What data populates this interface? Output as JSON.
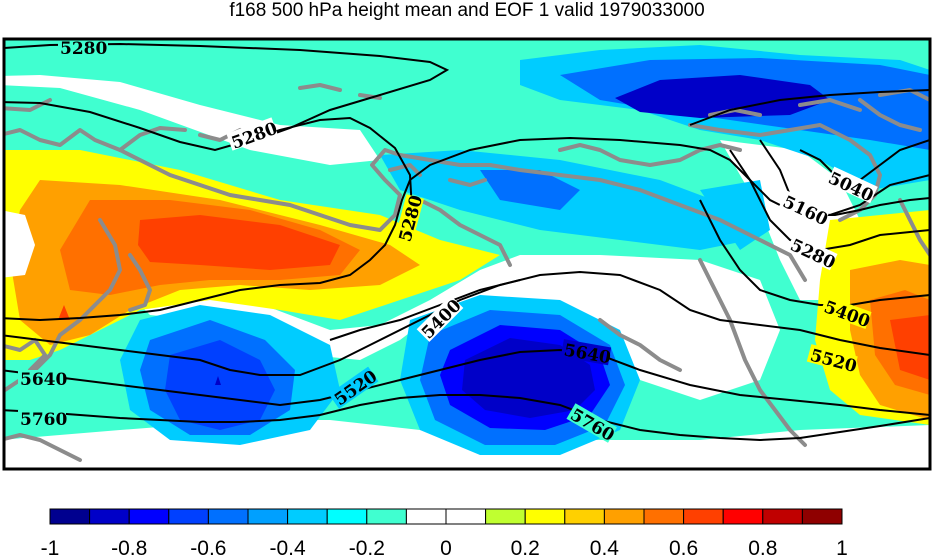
{
  "title": "f168 500 hPa height mean and EOF 1 valid 1979033000",
  "colorbar": {
    "colors": [
      "#00008f",
      "#0000c8",
      "#0000ff",
      "#0040ff",
      "#0070ff",
      "#00a0ff",
      "#00ccff",
      "#00ffff",
      "#40ffd0",
      "#ffffff",
      "#ffffff",
      "#c0ff30",
      "#ffff00",
      "#ffd000",
      "#ffa000",
      "#ff7000",
      "#ff4000",
      "#ff0000",
      "#c00000",
      "#8f0000"
    ],
    "ticks": [
      "-1",
      "-0.8",
      "-0.6",
      "-0.4",
      "-0.2",
      "0",
      "0.2",
      "0.4",
      "0.6",
      "0.8",
      "1"
    ]
  },
  "contour_labels": [
    "5280",
    "5280",
    "5280",
    "5040",
    "5160",
    "5280",
    "5400",
    "5400",
    "5520",
    "5520",
    "5640",
    "5640",
    "5760",
    "5760"
  ],
  "legend_colors": {
    "land_outline": "#8c8c8c",
    "contour_line": "#000000",
    "background_fill": "#40ffd0"
  }
}
